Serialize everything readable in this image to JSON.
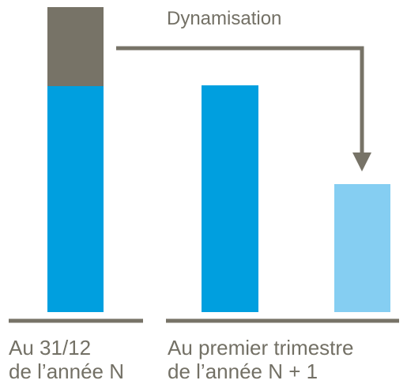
{
  "arrow_label": "Dynamisation",
  "left_group": {
    "line1": "Au 31/12",
    "line2": "de l’année N"
  },
  "right_group": {
    "line1": "Au premier trimestre",
    "line2": "de l’année N + 1"
  },
  "colors": {
    "blue": "#009FDF",
    "light_blue": "#85CEF2",
    "grey": "#777367",
    "text": "#737065"
  },
  "icons": [
    "arrow-down-icon"
  ]
}
